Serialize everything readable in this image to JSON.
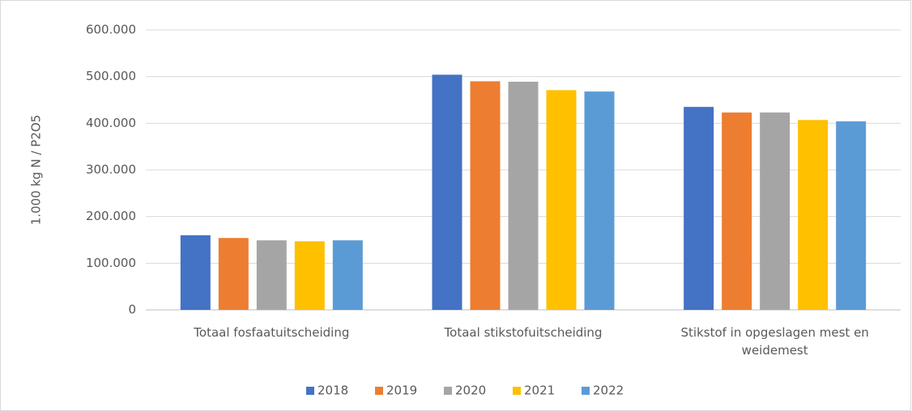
{
  "chart_data": {
    "type": "bar",
    "y_label": "1.000 kg N / P2O5",
    "categories": [
      "Totaal fosfaatuitscheiding",
      "Totaal stikstofuitscheiding",
      "Stikstof in opgeslagen mest en weidemest"
    ],
    "series": [
      {
        "name": "2018",
        "color": "#4472c4",
        "values": [
          160000,
          504000,
          435000
        ]
      },
      {
        "name": "2019",
        "color": "#ed7d31",
        "values": [
          154000,
          490000,
          423000
        ]
      },
      {
        "name": "2020",
        "color": "#a5a5a5",
        "values": [
          149000,
          489000,
          423000
        ]
      },
      {
        "name": "2021",
        "color": "#ffc000",
        "values": [
          147000,
          471000,
          407000
        ]
      },
      {
        "name": "2022",
        "color": "#5b9bd5",
        "values": [
          149000,
          468000,
          404000
        ]
      }
    ],
    "ylim": [
      0,
      600000
    ],
    "yticks": [
      0,
      {
        "value": 100000,
        "label": "100.000"
      },
      {
        "value": 200000,
        "label": "200.000"
      },
      {
        "value": 300000,
        "label": "300.000"
      },
      {
        "value": 400000,
        "label": "400.000"
      },
      {
        "value": 500000,
        "label": "500.000"
      },
      {
        "value": 600000,
        "label": "600.000"
      }
    ],
    "grid": true,
    "legend": "bottom"
  }
}
